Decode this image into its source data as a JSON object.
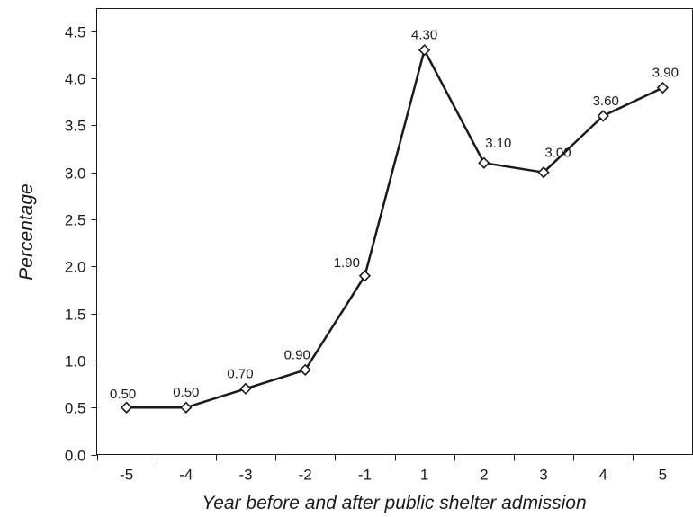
{
  "chart_data": {
    "type": "line",
    "title": "",
    "xlabel": "Year before and after public shelter admission",
    "ylabel": "Percentage",
    "categories": [
      "-5",
      "-4",
      "-3",
      "-2",
      "-1",
      "1",
      "2",
      "3",
      "4",
      "5"
    ],
    "series": [
      {
        "values": [
          0.5,
          0.5,
          0.7,
          0.9,
          1.9,
          4.3,
          3.1,
          3.0,
          3.6,
          3.9
        ],
        "data_labels": [
          "0.50",
          "0.50",
          "0.70",
          "0.90",
          "1.90",
          "4.30",
          "3.10",
          "3.00",
          "3.60",
          "3.90"
        ]
      }
    ],
    "yticks": [
      "0.0",
      "0.5",
      "1.0",
      "1.5",
      "2.0",
      "2.5",
      "3.0",
      "3.5",
      "4.0",
      "4.5"
    ],
    "ylim": [
      0,
      4.6
    ],
    "grid": false,
    "legend": "none",
    "marker": "diamond-open",
    "line_color": "#1a1a1a"
  }
}
